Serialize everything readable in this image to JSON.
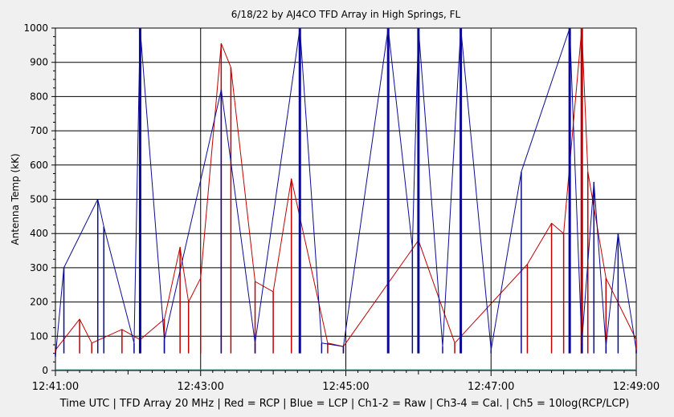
{
  "chart_data": {
    "type": "line",
    "title": "6/18/22  by  AJ4CO TFD Array  in  High Springs, FL",
    "ylabel": "Antenna Temp (kK)",
    "xlabel": "Time UTC | TFD Array 20 MHz | Red = RCP | Blue = LCP | Ch1-2 = Raw | Ch3-4 = Cal. | Ch5 = 10log(RCP/LCP)",
    "xlim": [
      "12:41:00",
      "12:49:00"
    ],
    "ylim": [
      0,
      1000
    ],
    "y_ticks": [
      "0",
      "100",
      "200",
      "300",
      "400",
      "500",
      "600",
      "700",
      "800",
      "900",
      "1000"
    ],
    "x_ticks": [
      "12:41:00",
      "12:43:00",
      "12:45:00",
      "12:47:00",
      "12:49:00"
    ],
    "grid": true,
    "series": [
      {
        "name": "RCP",
        "color": "#c00000",
        "x": [
          "12:41:00",
          "12:41:20",
          "12:41:30",
          "12:41:55",
          "12:42:10",
          "12:42:30",
          "12:42:43",
          "12:42:50",
          "12:43:00",
          "12:43:17",
          "12:43:25",
          "12:43:45",
          "12:44:00",
          "12:44:15",
          "12:44:45",
          "12:44:58",
          "12:46:00",
          "12:46:30",
          "12:47:30",
          "12:47:50",
          "12:48:00",
          "12:48:15",
          "12:48:20",
          "12:48:35",
          "12:49:00"
        ],
        "values": [
          60,
          150,
          80,
          120,
          90,
          150,
          360,
          200,
          270,
          955,
          885,
          260,
          230,
          560,
          80,
          70,
          380,
          80,
          310,
          430,
          400,
          1000,
          580,
          270,
          90
        ]
      },
      {
        "name": "LCP",
        "color": "#0a0a96",
        "x": [
          "12:41:00",
          "12:41:07",
          "12:41:35",
          "12:41:40",
          "12:42:05",
          "12:42:10",
          "12:42:30",
          "12:43:17",
          "12:43:45",
          "12:44:22",
          "12:44:40",
          "12:44:58",
          "12:45:35",
          "12:45:55",
          "12:46:00",
          "12:46:20",
          "12:46:35",
          "12:47:00",
          "12:47:25",
          "12:48:05",
          "12:48:15",
          "12:48:25",
          "12:48:35",
          "12:48:45",
          "12:49:00"
        ],
        "values": [
          40,
          300,
          500,
          420,
          80,
          1000,
          90,
          820,
          80,
          1000,
          80,
          70,
          1000,
          360,
          1000,
          70,
          1000,
          60,
          580,
          1000,
          80,
          550,
          70,
          400,
          60
        ]
      },
      {
        "name": "Ch5",
        "color": "#2a9a8a",
        "x": [
          "12:41:00",
          "12:49:00"
        ],
        "values": [
          2,
          2
        ]
      }
    ]
  }
}
